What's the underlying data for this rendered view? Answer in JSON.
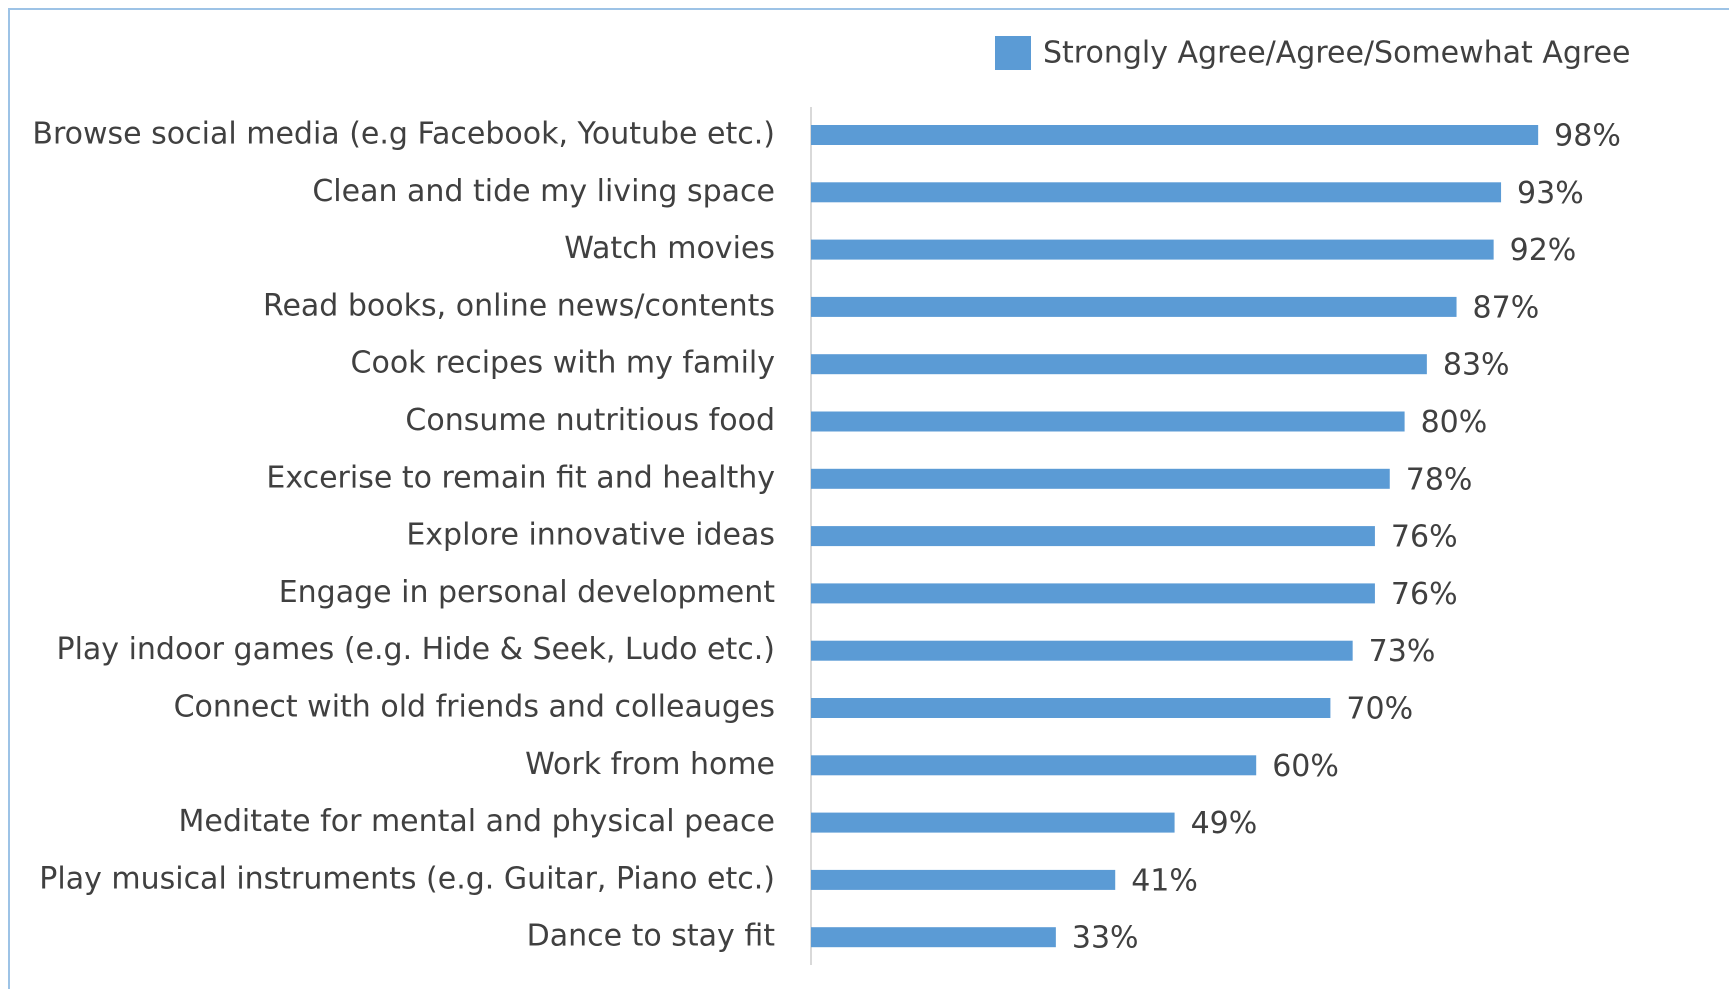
{
  "chart_data": {
    "type": "barh",
    "categories": [
      "Browse social media (e.g Facebook, Youtube etc.)",
      "Clean and tide my living space",
      "Watch movies",
      "Read books, online news/contents",
      "Cook recipes with my family",
      "Consume nutritious food",
      "Excerise to remain fit and healthy",
      "Explore innovative ideas",
      "Engage in personal development",
      "Play indoor games (e.g. Hide & Seek, Ludo etc.)",
      "Connect with old friends and colleauges",
      "Work from home",
      "Meditate for mental and physical peace",
      "Play musical instruments (e.g. Guitar, Piano etc.)",
      "Dance to stay fit"
    ],
    "series": [
      {
        "name": "Strongly Agree/Agree/Somewhat Agree",
        "color": "#5b9bd5",
        "values": [
          98,
          93,
          92,
          87,
          83,
          80,
          78,
          76,
          76,
          73,
          70,
          60,
          49,
          41,
          33
        ],
        "value_labels": [
          "98%",
          "93%",
          "92%",
          "87%",
          "83%",
          "80%",
          "78%",
          "76%",
          "76%",
          "73%",
          "70%",
          "60%",
          "49%",
          "41%",
          "33%"
        ]
      }
    ],
    "legend": "top-right"
  }
}
